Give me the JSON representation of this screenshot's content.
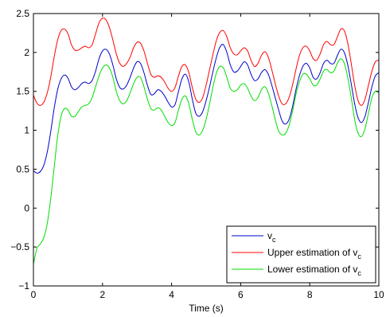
{
  "chart_data": {
    "type": "line",
    "title": "",
    "xlabel": "Time (s)",
    "ylabel": "",
    "xlim": [
      0,
      10
    ],
    "ylim": [
      -1,
      2.5
    ],
    "xticks": [
      0,
      2,
      4,
      6,
      8,
      10
    ],
    "xtick_labels": [
      "0",
      "2",
      "4",
      "6",
      "8",
      "10"
    ],
    "yticks": [
      -1,
      -0.5,
      0,
      0.5,
      1,
      1.5,
      2,
      2.5
    ],
    "ytick_labels": [
      "−1",
      "−0.5",
      "0",
      "0.5",
      "1",
      "1.5",
      "2",
      "2.5"
    ],
    "grid": false,
    "legend_position": "bottom-right",
    "x": [
      0,
      0.1,
      0.2,
      0.3,
      0.4,
      0.5,
      0.6,
      0.7,
      0.8,
      0.9,
      1.0,
      1.1,
      1.2,
      1.3,
      1.4,
      1.5,
      1.6,
      1.7,
      1.8,
      1.9,
      2.0,
      2.1,
      2.2,
      2.3,
      2.4,
      2.5,
      2.6,
      2.7,
      2.8,
      2.9,
      3.0,
      3.1,
      3.2,
      3.3,
      3.4,
      3.5,
      3.6,
      3.7,
      3.8,
      3.9,
      4.0,
      4.1,
      4.2,
      4.3,
      4.4,
      4.5,
      4.6,
      4.7,
      4.8,
      4.9,
      5.0,
      5.1,
      5.2,
      5.3,
      5.4,
      5.5,
      5.6,
      5.7,
      5.8,
      5.9,
      6.0,
      6.1,
      6.2,
      6.3,
      6.4,
      6.5,
      6.6,
      6.7,
      6.8,
      6.9,
      7.0,
      7.1,
      7.2,
      7.3,
      7.4,
      7.5,
      7.6,
      7.7,
      7.8,
      7.9,
      8.0,
      8.1,
      8.2,
      8.3,
      8.4,
      8.5,
      8.6,
      8.7,
      8.8,
      8.9,
      9.0,
      9.1,
      9.2,
      9.3,
      9.4,
      9.5,
      9.6,
      9.7,
      9.8,
      9.9,
      10.0
    ],
    "series": [
      {
        "name": "v",
        "name_subscript": "c",
        "color": "#0000cc",
        "values": [
          0.48,
          0.45,
          0.47,
          0.55,
          0.72,
          0.98,
          1.28,
          1.52,
          1.66,
          1.71,
          1.67,
          1.56,
          1.52,
          1.55,
          1.6,
          1.62,
          1.6,
          1.64,
          1.76,
          1.92,
          2.02,
          2.04,
          1.98,
          1.84,
          1.66,
          1.55,
          1.53,
          1.58,
          1.68,
          1.8,
          1.88,
          1.86,
          1.74,
          1.58,
          1.46,
          1.47,
          1.52,
          1.5,
          1.44,
          1.36,
          1.3,
          1.33,
          1.5,
          1.66,
          1.72,
          1.62,
          1.4,
          1.22,
          1.18,
          1.24,
          1.38,
          1.56,
          1.76,
          1.94,
          2.07,
          2.1,
          2.0,
          1.84,
          1.75,
          1.76,
          1.82,
          1.88,
          1.84,
          1.72,
          1.64,
          1.66,
          1.74,
          1.78,
          1.72,
          1.58,
          1.42,
          1.26,
          1.12,
          1.08,
          1.14,
          1.3,
          1.52,
          1.7,
          1.82,
          1.86,
          1.8,
          1.68,
          1.66,
          1.74,
          1.86,
          1.9,
          1.86,
          1.86,
          1.96,
          2.04,
          2.0,
          1.84,
          1.6,
          1.34,
          1.16,
          1.1,
          1.18,
          1.36,
          1.56,
          1.7,
          1.74
        ]
      },
      {
        "name": "Upper estimation of v",
        "name_subscript": "c",
        "color": "#ff0000",
        "values": [
          1.45,
          1.35,
          1.32,
          1.36,
          1.48,
          1.68,
          1.94,
          2.16,
          2.28,
          2.3,
          2.24,
          2.1,
          2.03,
          2.03,
          2.06,
          2.08,
          2.06,
          2.1,
          2.24,
          2.38,
          2.44,
          2.42,
          2.32,
          2.16,
          1.98,
          1.86,
          1.82,
          1.86,
          1.94,
          2.06,
          2.13,
          2.12,
          2.02,
          1.86,
          1.72,
          1.68,
          1.7,
          1.68,
          1.62,
          1.54,
          1.5,
          1.55,
          1.7,
          1.82,
          1.84,
          1.74,
          1.55,
          1.4,
          1.36,
          1.42,
          1.58,
          1.78,
          1.98,
          2.16,
          2.26,
          2.28,
          2.2,
          2.06,
          1.98,
          1.97,
          2.02,
          2.06,
          2.02,
          1.9,
          1.82,
          1.86,
          1.96,
          2.01,
          1.94,
          1.78,
          1.6,
          1.44,
          1.34,
          1.34,
          1.42,
          1.58,
          1.78,
          1.96,
          2.06,
          2.08,
          2.02,
          1.92,
          1.9,
          1.98,
          2.1,
          2.14,
          2.1,
          2.1,
          2.2,
          2.3,
          2.28,
          2.12,
          1.86,
          1.58,
          1.38,
          1.32,
          1.4,
          1.58,
          1.76,
          1.88,
          1.9
        ]
      },
      {
        "name": "Lower estimation of v",
        "name_subscript": "c",
        "color": "#00dd00",
        "values": [
          -0.72,
          -0.52,
          -0.46,
          -0.38,
          -0.2,
          0.12,
          0.52,
          0.92,
          1.18,
          1.28,
          1.26,
          1.18,
          1.18,
          1.24,
          1.3,
          1.32,
          1.34,
          1.42,
          1.56,
          1.7,
          1.8,
          1.84,
          1.8,
          1.68,
          1.5,
          1.38,
          1.34,
          1.38,
          1.48,
          1.6,
          1.68,
          1.68,
          1.56,
          1.4,
          1.28,
          1.26,
          1.29,
          1.26,
          1.18,
          1.1,
          1.06,
          1.1,
          1.26,
          1.4,
          1.44,
          1.34,
          1.14,
          0.98,
          0.94,
          1.0,
          1.14,
          1.34,
          1.56,
          1.74,
          1.82,
          1.8,
          1.68,
          1.54,
          1.5,
          1.52,
          1.58,
          1.6,
          1.54,
          1.44,
          1.38,
          1.42,
          1.52,
          1.56,
          1.48,
          1.32,
          1.14,
          0.99,
          0.94,
          0.96,
          1.06,
          1.24,
          1.46,
          1.62,
          1.72,
          1.72,
          1.66,
          1.58,
          1.58,
          1.66,
          1.76,
          1.78,
          1.74,
          1.76,
          1.86,
          1.92,
          1.86,
          1.68,
          1.42,
          1.14,
          0.96,
          0.92,
          1.02,
          1.22,
          1.42,
          1.5,
          1.48
        ]
      }
    ]
  }
}
